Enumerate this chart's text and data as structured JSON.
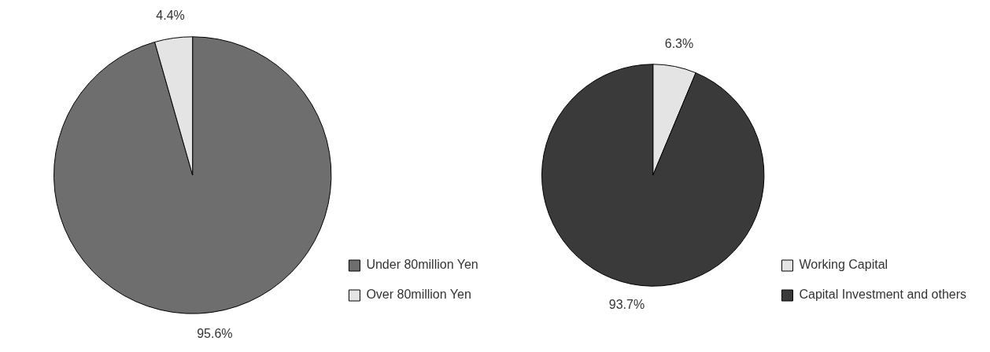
{
  "chart_data": [
    {
      "type": "pie",
      "categories": [
        "Under 80million Yen",
        "Over 80million Yen"
      ],
      "values": [
        95.6,
        4.4
      ],
      "colors": [
        "#6e6e6e",
        "#e4e4e4"
      ],
      "value_labels": [
        "95.6%",
        "4.4%"
      ],
      "legend": "bottom right"
    },
    {
      "type": "pie",
      "categories": [
        "Working Capital",
        "Capital Investment and others"
      ],
      "values": [
        6.3,
        93.7
      ],
      "colors": [
        "#e4e4e4",
        "#3a3a3a"
      ],
      "value_labels": [
        "6.3%",
        "93.7%"
      ],
      "legend": "bottom right"
    }
  ]
}
